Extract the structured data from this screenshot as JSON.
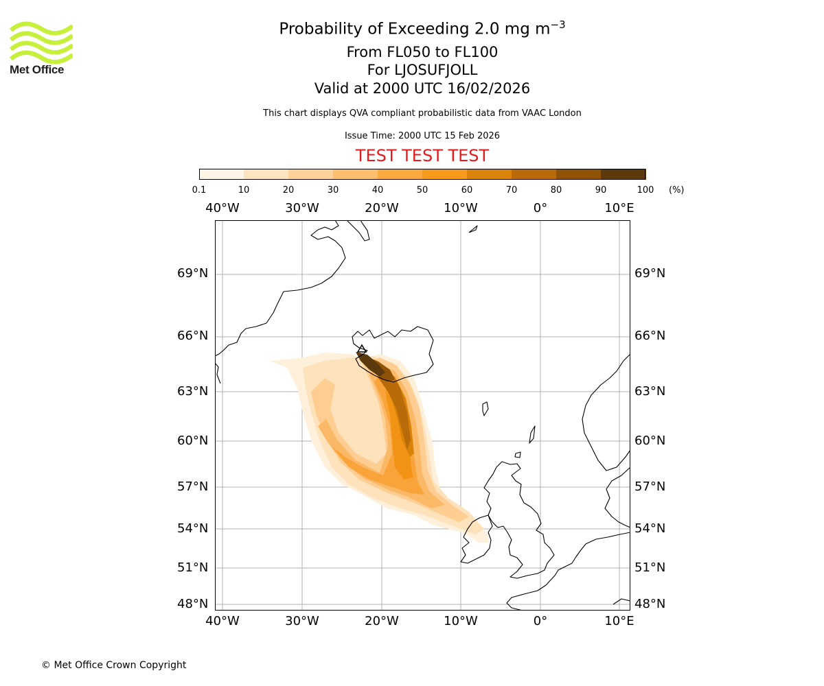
{
  "brand": {
    "name": "Met Office",
    "logo_color": "#c6f03c"
  },
  "header": {
    "title": "Probability of Exceeding 2.0 mg m",
    "title_superscript": "−3",
    "flight_levels": "From FL050 to FL100",
    "volcano": "For LJOSUFJOLL",
    "valid_time": "Valid at 2000 UTC 16/02/2026",
    "disclaimer": "This chart displays QVA compliant probabilistic data from VAAC London",
    "issue_time": "Issue Time: 2000 UTC 15 Feb 2026",
    "test_banner": "TEST TEST TEST",
    "test_color": "#e41a1c"
  },
  "legend": {
    "unit": "(%)",
    "ticks": [
      "0.1",
      "10",
      "20",
      "30",
      "40",
      "50",
      "60",
      "70",
      "80",
      "90",
      "100"
    ],
    "colors": [
      "#fff5e6",
      "#fde4c0",
      "#fdd19a",
      "#fdbf6e",
      "#fbaa40",
      "#f59a1c",
      "#d98409",
      "#b86b08",
      "#8f5307",
      "#5c3a0d"
    ]
  },
  "map": {
    "projection": "Polar stereographic",
    "lon_labels": [
      "40°W",
      "30°W",
      "20°W",
      "10°W",
      "0°",
      "10°E"
    ],
    "lat_labels": [
      "69°N",
      "66°N",
      "63°N",
      "60°N",
      "57°N",
      "54°N",
      "51°N",
      "48°N"
    ],
    "gridline_color": "#b0b0b0",
    "coastline_color": "#000000",
    "regions": [
      "Greenland",
      "Iceland",
      "Faroe Islands",
      "Shetland",
      "Norway",
      "Ireland",
      "Great Britain",
      "France",
      "Netherlands",
      "Denmark"
    ]
  },
  "footer": {
    "copyright": "© Met Office Crown Copyright"
  }
}
